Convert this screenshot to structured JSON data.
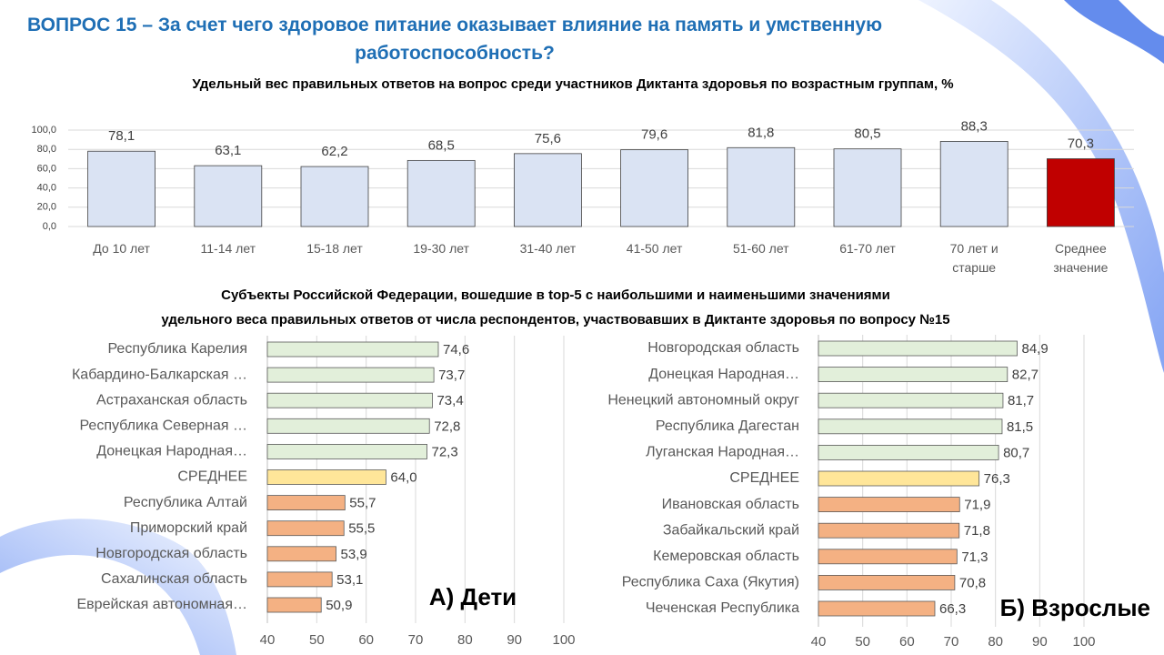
{
  "header": {
    "title": "ВОПРОС 15 – За счет чего здоровое питание оказывает влияние на память и умственную работоспособность?"
  },
  "section_title": [
    "Субъекты Российской Федерации, вошедшие в  top-5 с наибольшими и наименьшими значениями",
    "удельного веса правильных ответов от числа респондентов,  участвовавших  в Диктанте здоровья  по вопросу №15"
  ],
  "chart_data": [
    {
      "type": "bar",
      "title": "Удельный вес правильных ответов на вопрос среди участников  Диктанта  здоровья  по возрастным  группам, %",
      "categories": [
        "До 10 лет",
        "11-14 лет",
        "15-18 лет",
        "19-30 лет",
        "31-40 лет",
        "41-50 лет",
        "51-60 лет",
        "61-70 лет",
        "70 лет и старше",
        "Среднее значение"
      ],
      "values": [
        78.1,
        63.1,
        62.2,
        68.5,
        75.6,
        79.6,
        81.8,
        80.5,
        88.3,
        70.3
      ],
      "value_labels": [
        "78,1",
        "63,1",
        "62,2",
        "68,5",
        "75,6",
        "79,6",
        "81,8",
        "80,5",
        "88,3",
        "70,3"
      ],
      "colors": [
        "#dae3f3",
        "#dae3f3",
        "#dae3f3",
        "#dae3f3",
        "#dae3f3",
        "#dae3f3",
        "#dae3f3",
        "#dae3f3",
        "#dae3f3",
        "#c00000"
      ],
      "ylim": [
        0,
        100
      ],
      "yticks": [
        {
          "value": 0,
          "label": "0,0"
        },
        {
          "value": 20,
          "label": "20,0"
        },
        {
          "value": 40,
          "label": "40,0"
        },
        {
          "value": 60,
          "label": "60,0"
        },
        {
          "value": 80,
          "label": "80,0"
        },
        {
          "value": 100,
          "label": "100,0"
        }
      ],
      "grid": true
    },
    {
      "type": "barh",
      "annotation": "А) Дети",
      "categories": [
        "Республика Карелия",
        "Кабардино-Балкарская …",
        "Астраханская область",
        "Республика Северная …",
        "Донецкая Народная…",
        "СРЕДНЕЕ",
        "Республика Алтай",
        "Приморский край",
        "Новгородская область",
        "Сахалинская область",
        "Еврейская автономная…"
      ],
      "values": [
        74.6,
        73.7,
        73.4,
        72.8,
        72.3,
        64.0,
        55.7,
        55.5,
        53.9,
        53.1,
        50.9
      ],
      "value_labels": [
        "74,6",
        "73,7",
        "73,4",
        "72,8",
        "72,3",
        "64,0",
        "55,7",
        "55,5",
        "53,9",
        "53,1",
        "50,9"
      ],
      "colors": [
        "#e2efda",
        "#e2efda",
        "#e2efda",
        "#e2efda",
        "#e2efda",
        "#ffe699",
        "#f4b183",
        "#f4b183",
        "#f4b183",
        "#f4b183",
        "#f4b183"
      ],
      "xlim": [
        40,
        100
      ],
      "xticks": [
        40,
        50,
        60,
        70,
        80,
        90,
        100
      ],
      "grid": true
    },
    {
      "type": "barh",
      "annotation": "Б) Взрослые",
      "categories": [
        "Новгородская область",
        "Донецкая Народная…",
        "Ненецкий  автономный  округ",
        "Республика Дагестан",
        "Луганская Народная…",
        "СРЕДНЕЕ",
        "Ивановская область",
        "Забайкальский край",
        "Кемеровская область",
        "Республика Саха (Якутия)",
        "Чеченская Республика"
      ],
      "values": [
        84.9,
        82.7,
        81.7,
        81.5,
        80.7,
        76.3,
        71.9,
        71.8,
        71.3,
        70.8,
        66.3
      ],
      "value_labels": [
        "84,9",
        "82,7",
        "81,7",
        "81,5",
        "80,7",
        "76,3",
        "71,9",
        "71,8",
        "71,3",
        "70,8",
        "66,3"
      ],
      "colors": [
        "#e2efda",
        "#e2efda",
        "#e2efda",
        "#e2efda",
        "#e2efda",
        "#ffe699",
        "#f4b183",
        "#f4b183",
        "#f4b183",
        "#f4b183",
        "#f4b183"
      ],
      "xlim": [
        40,
        100
      ],
      "xticks": [
        40,
        50,
        60,
        70,
        80,
        90,
        100
      ],
      "grid": true
    }
  ]
}
